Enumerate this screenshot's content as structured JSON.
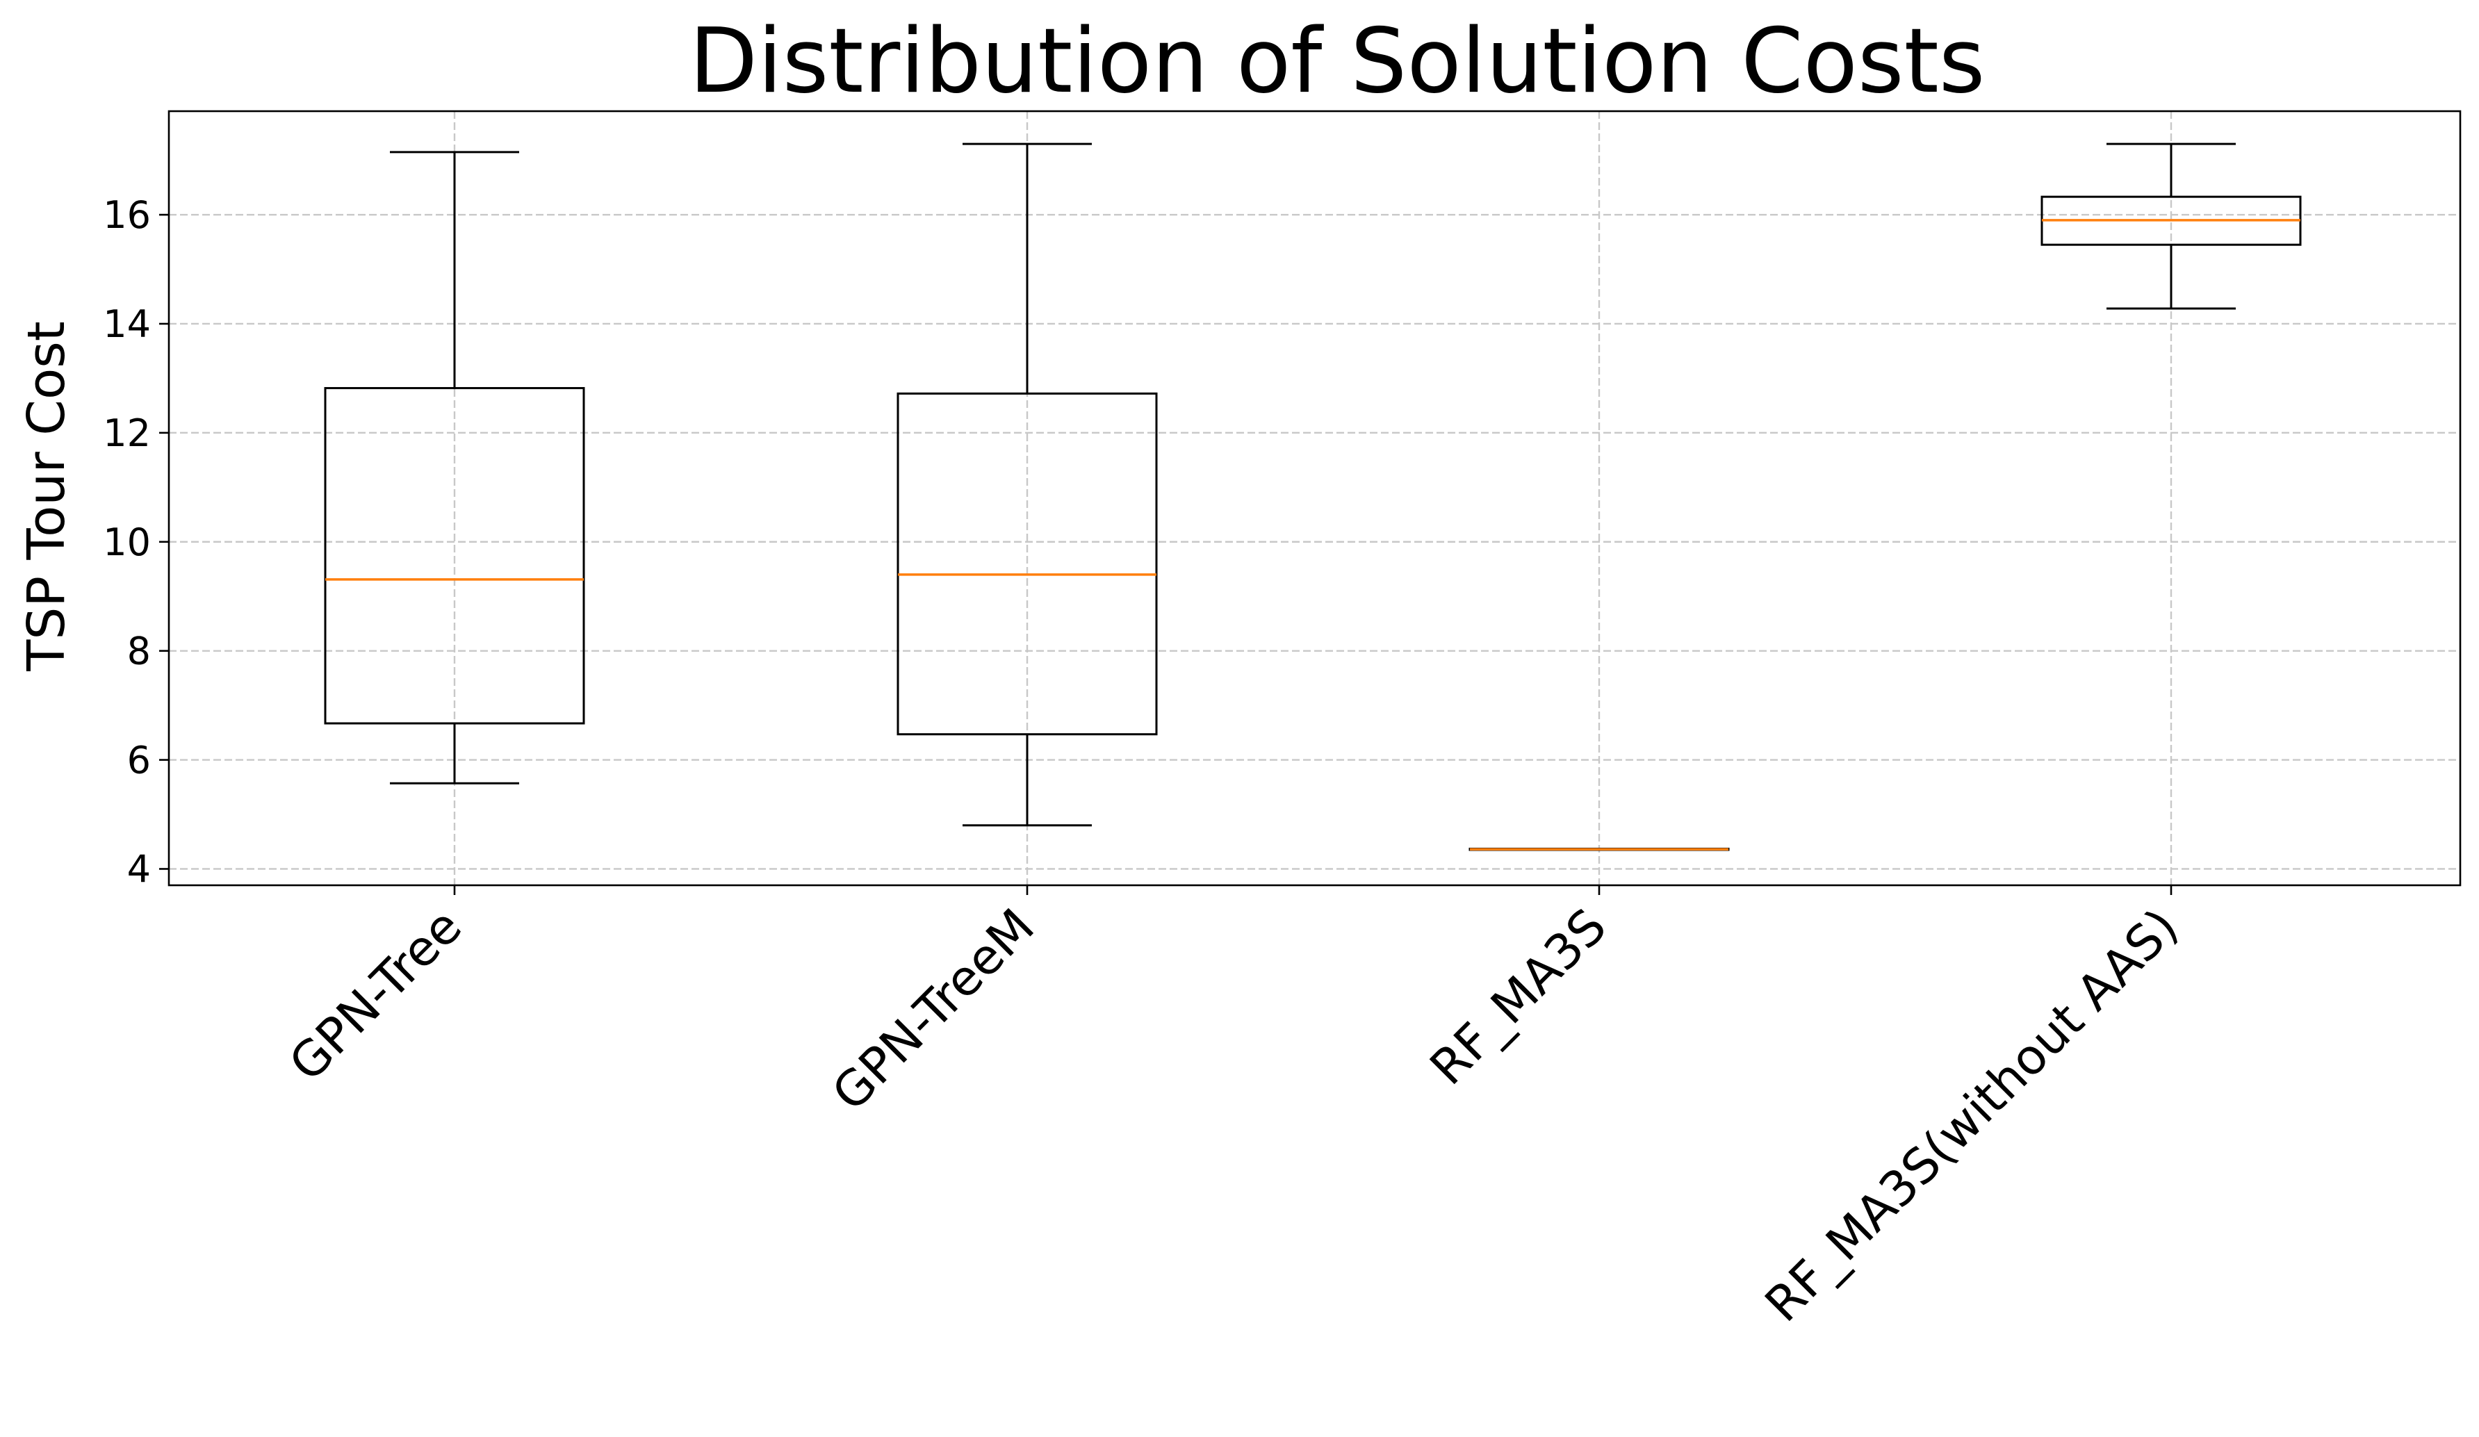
{
  "chart_data": {
    "type": "box",
    "title": "Distribution of Solution Costs",
    "xlabel": "",
    "ylabel": "TSP Tour Cost",
    "ylim": [
      3.7,
      17.9
    ],
    "yticks": [
      4,
      6,
      8,
      10,
      12,
      14,
      16
    ],
    "grid": true,
    "categories": [
      "GPN-Tree",
      "GPN-TreeM",
      "RF_MA3S",
      "RF_MA3S(without AAS)"
    ],
    "boxes": [
      {
        "name": "GPN-Tree",
        "whisker_low": 5.57,
        "q1": 6.67,
        "median": 9.31,
        "q3": 12.82,
        "whisker_high": 17.15
      },
      {
        "name": "GPN-TreeM",
        "whisker_low": 4.8,
        "q1": 6.47,
        "median": 9.4,
        "q3": 12.72,
        "whisker_high": 17.3
      },
      {
        "name": "RF_MA3S",
        "whisker_low": 4.35,
        "q1": 4.35,
        "median": 4.36,
        "q3": 4.37,
        "whisker_high": 4.37
      },
      {
        "name": "RF_MA3S(without AAS)",
        "whisker_low": 14.28,
        "q1": 15.45,
        "median": 15.9,
        "q3": 16.33,
        "whisker_high": 17.3
      }
    ],
    "colors": {
      "box": "#000000",
      "median": "#ff7f0e",
      "grid": "#c8c8c8"
    }
  }
}
